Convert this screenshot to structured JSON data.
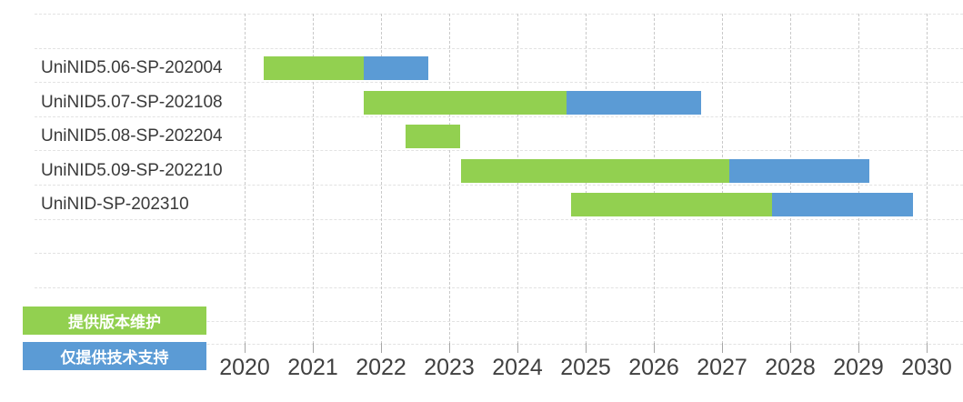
{
  "page": {
    "background_color": "#ffffff",
    "text_color": "#404040"
  },
  "chart_data": {
    "type": "bar",
    "variant": "horizontal-stacked-gantt-timeline",
    "title": "",
    "xlabel": "",
    "ylabel": "",
    "categories": [
      "UniNID5.06-SP-202004",
      "UniNID5.07-SP-202108",
      "UniNID5.08-SP-202204",
      "UniNID5.09-SP-202210",
      "UniNID-SP-202310"
    ],
    "series": [
      {
        "name": "提供版本维护",
        "color": "#92d050",
        "segments": [
          [
            2020.28,
            2021.75
          ],
          [
            2021.75,
            2024.72
          ],
          [
            2022.36,
            2023.16
          ],
          [
            2023.17,
            2027.11
          ],
          [
            2024.79,
            2027.73
          ]
        ]
      },
      {
        "name": "仅提供技术支持",
        "color": "#5b9bd5",
        "segments": [
          [
            2021.75,
            2022.69
          ],
          [
            2024.72,
            2026.69
          ],
          null,
          [
            2027.11,
            2029.16
          ],
          [
            2027.73,
            2029.8
          ]
        ]
      }
    ],
    "x_ticks": [
      2020,
      2021,
      2022,
      2023,
      2024,
      2025,
      2026,
      2027,
      2028,
      2029,
      2030
    ],
    "xlim": [
      2020,
      2030.5
    ],
    "grid": {
      "vertical_style": "dashed",
      "horizontal_style": "dashed",
      "vertical_color": "#c9c9c9",
      "horizontal_color": "#e2e2e2"
    },
    "axis_text_color": "#404040",
    "legend": {
      "position": "bottom-left",
      "items": [
        {
          "label": "提供版本维护",
          "color": "#92d050",
          "text_color": "#ffffff"
        },
        {
          "label": "仅提供技术支持",
          "color": "#5b9bd5",
          "text_color": "#ffffff"
        }
      ]
    }
  }
}
